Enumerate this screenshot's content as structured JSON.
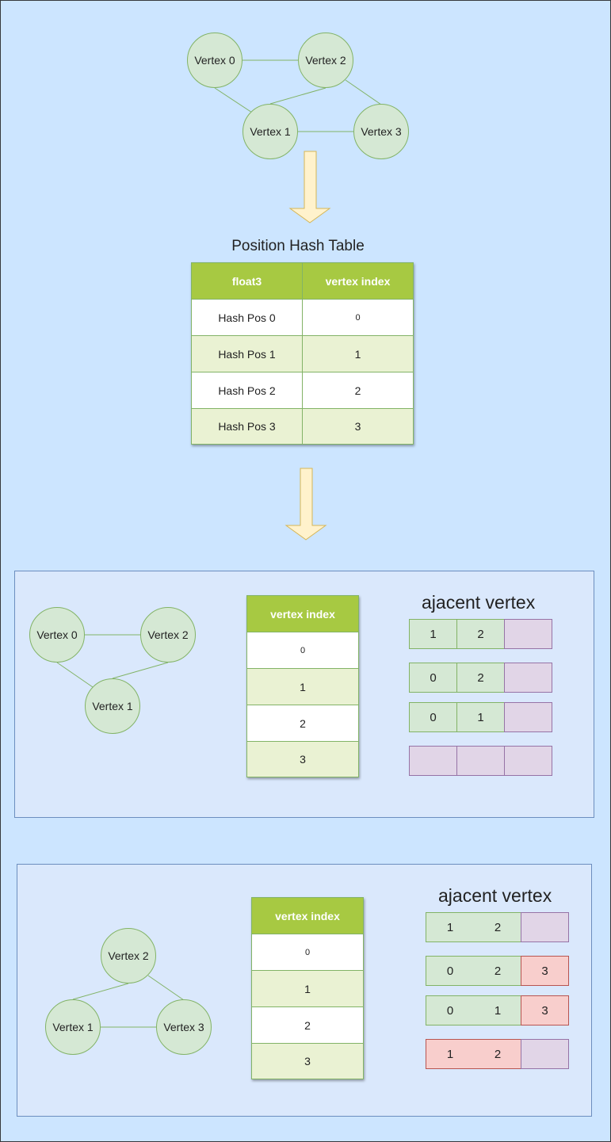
{
  "top_graph": {
    "nodes": [
      "Vertex 0",
      "Vertex 2",
      "Vertex 1",
      "Vertex 3"
    ]
  },
  "hash_table": {
    "title": "Position Hash Table",
    "headers": [
      "float3",
      "vertex index"
    ],
    "rows": [
      [
        "Hash Pos 0",
        "0"
      ],
      [
        "Hash Pos 1",
        "1"
      ],
      [
        "Hash Pos 2",
        "2"
      ],
      [
        "Hash Pos 3",
        "3"
      ]
    ]
  },
  "panel1": {
    "nodes": [
      "Vertex 0",
      "Vertex 2",
      "Vertex 1"
    ],
    "table_header": "vertex index",
    "table_rows": [
      "0",
      "1",
      "2",
      "3"
    ],
    "adj_title": "ajacent vertex",
    "adjacency": [
      [
        "1",
        "2",
        ""
      ],
      [
        "0",
        "2",
        ""
      ],
      [
        "0",
        "1",
        ""
      ],
      [
        "",
        "",
        ""
      ]
    ]
  },
  "panel2": {
    "nodes": [
      "Vertex 2",
      "Vertex 1",
      "Vertex 3"
    ],
    "table_header": "vertex index",
    "table_rows": [
      "0",
      "1",
      "2",
      "3"
    ],
    "adj_title": "ajacent vertex",
    "adjacency": [
      [
        "1",
        "2",
        ""
      ],
      [
        "0",
        "2",
        "3"
      ],
      [
        "0",
        "1",
        "3"
      ],
      [
        "1",
        "2",
        ""
      ]
    ]
  },
  "colors": {
    "background": "#cce5ff",
    "node_fill": "#d5e8d4",
    "node_stroke": "#82b366",
    "table_header": "#a7c942",
    "table_alt_row": "#eaf2d3",
    "panel_fill": "#dae8fc",
    "panel_stroke": "#6c8ebf",
    "empty_slot": "#e1d5e7",
    "new_neighbor": "#f8cecc",
    "arrow_fill": "#fff2cc",
    "arrow_stroke": "#d6b656"
  }
}
